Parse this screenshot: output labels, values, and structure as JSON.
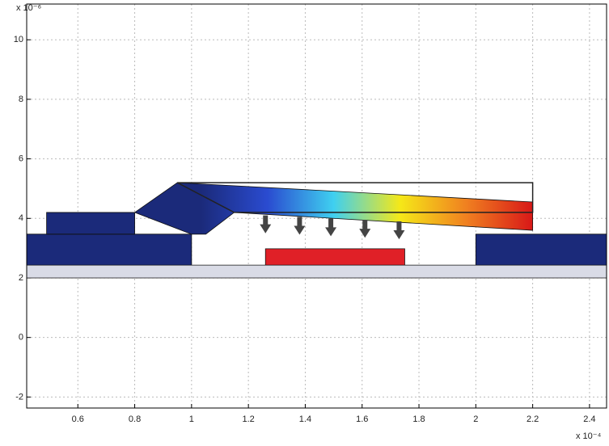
{
  "chart_data": {
    "type": "patch",
    "ylabel_exponent": "x 10⁻⁶",
    "xlabel_exponent": "x 10⁻⁴",
    "xlim": [
      0.42,
      2.46
    ],
    "ylim": [
      -2.37,
      11.2
    ],
    "xticks": [
      0.6,
      0.8,
      1,
      1.2,
      1.4,
      1.6,
      1.8,
      2,
      2.2,
      2.4
    ],
    "yticks": [
      -2,
      0,
      2,
      4,
      6,
      8,
      10
    ],
    "grid": true,
    "shapes": [
      {
        "color": "#d9dbe6",
        "x": [
          0.42,
          2.46,
          2.46,
          0.42
        ],
        "y": [
          2.0,
          2.0,
          2.43,
          2.43
        ]
      },
      {
        "color": "#1b2a7a",
        "x": [
          0.42,
          1.0,
          1.0,
          0.42
        ],
        "y": [
          2.43,
          2.43,
          3.47,
          3.47
        ]
      },
      {
        "color": "#1b2a7a",
        "x": [
          0.49,
          0.8,
          0.8,
          0.49
        ],
        "y": [
          3.47,
          3.47,
          4.2,
          4.2
        ]
      },
      {
        "color": "#1b2a7a",
        "x": [
          2.0,
          2.46,
          2.46,
          2.0
        ],
        "y": [
          2.43,
          2.43,
          3.47,
          3.47
        ]
      },
      {
        "color": "#e02027",
        "x": [
          1.26,
          1.75,
          1.75,
          1.26
        ],
        "y": [
          2.43,
          2.43,
          2.98,
          2.98
        ]
      },
      {
        "colormap": [
          "#1b2a7a",
          "#1b2a7a",
          "#2a4bd0",
          "#3fd0f0",
          "#f5e818",
          "#f08020",
          "#d81818"
        ],
        "x": [
          0.8,
          0.95,
          2.2,
          2.2,
          1.15,
          1.05,
          1.0
        ],
        "y": [
          4.2,
          5.2,
          4.55,
          3.6,
          4.2,
          3.47,
          3.47
        ]
      },
      {
        "outline": "#222222",
        "x": [
          0.95,
          2.2,
          2.2,
          1.15
        ],
        "y": [
          5.2,
          5.2,
          4.2,
          4.2
        ]
      }
    ],
    "arrows": {
      "color": "#444444",
      "x": [
        1.26,
        1.38,
        1.49,
        1.61,
        1.73
      ],
      "y0": [
        4.1,
        4.05,
        4.0,
        3.95,
        3.9
      ],
      "y1": [
        3.5,
        3.45,
        3.4,
        3.35,
        3.3
      ]
    }
  }
}
